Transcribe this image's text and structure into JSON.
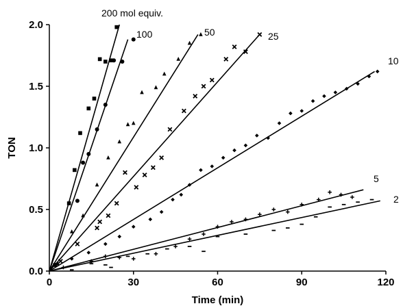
{
  "chart_data": {
    "type": "scatter",
    "title": "",
    "xlabel": "Time (min)",
    "ylabel": "TON",
    "xlim": [
      0,
      120
    ],
    "ylim": [
      0,
      2.0
    ],
    "xticks": [
      0,
      30,
      60,
      90,
      120
    ],
    "yticks": [
      0.0,
      0.5,
      1.0,
      1.5,
      2.0
    ],
    "xtick_labels": [
      "0",
      "30",
      "60",
      "90",
      "120"
    ],
    "ytick_labels": [
      "0.0",
      "0.5",
      "1.0",
      "1.5",
      "2.0"
    ],
    "grid": false,
    "legend": "none",
    "series": [
      {
        "name": "200 mol equiv.",
        "marker": "square",
        "fit": [
          [
            0,
            0
          ],
          [
            25,
            2.0
          ]
        ],
        "points": [
          [
            2,
            0.05
          ],
          [
            7,
            0.55
          ],
          [
            9,
            0.82
          ],
          [
            11,
            1.12
          ],
          [
            14,
            1.32
          ],
          [
            16,
            1.4
          ],
          [
            18,
            1.72
          ],
          [
            20,
            1.7
          ],
          [
            22,
            1.71
          ],
          [
            24,
            1.98
          ]
        ]
      },
      {
        "name": "100",
        "marker": "circle",
        "fit": [
          [
            0,
            0
          ],
          [
            28,
            1.88
          ]
        ],
        "points": [
          [
            2,
            0.05
          ],
          [
            10,
            0.57
          ],
          [
            12,
            0.88
          ],
          [
            14,
            0.95
          ],
          [
            17,
            1.15
          ],
          [
            20,
            1.35
          ],
          [
            23,
            1.71
          ],
          [
            26,
            1.7
          ],
          [
            30,
            1.88
          ]
        ]
      },
      {
        "name": "50",
        "marker": "triangle",
        "fit": [
          [
            0,
            0
          ],
          [
            53,
            1.92
          ]
        ],
        "points": [
          [
            3,
            0.06
          ],
          [
            8,
            0.32
          ],
          [
            12,
            0.45
          ],
          [
            17,
            0.7
          ],
          [
            21,
            0.92
          ],
          [
            25,
            1.05
          ],
          [
            28,
            1.19
          ],
          [
            30,
            1.2
          ],
          [
            33,
            1.45
          ],
          [
            38,
            1.49
          ],
          [
            41,
            1.6
          ],
          [
            46,
            1.72
          ],
          [
            50,
            1.85
          ],
          [
            54,
            1.92
          ]
        ]
      },
      {
        "name": "25",
        "marker": "cross",
        "fit": [
          [
            0,
            0
          ],
          [
            75,
            1.92
          ]
        ],
        "points": [
          [
            4,
            0.08
          ],
          [
            10,
            0.22
          ],
          [
            17,
            0.35
          ],
          [
            18,
            0.4
          ],
          [
            21,
            0.45
          ],
          [
            24,
            0.55
          ],
          [
            27,
            0.8
          ],
          [
            31,
            0.68
          ],
          [
            34,
            0.78
          ],
          [
            37,
            0.84
          ],
          [
            40,
            0.92
          ],
          [
            43,
            1.15
          ],
          [
            48,
            1.3
          ],
          [
            52,
            1.42
          ],
          [
            55,
            1.5
          ],
          [
            58,
            1.55
          ],
          [
            63,
            1.72
          ],
          [
            66,
            1.82
          ],
          [
            70,
            1.78
          ],
          [
            75,
            1.92
          ]
        ]
      },
      {
        "name": "10",
        "marker": "diamond",
        "fit": [
          [
            0,
            0
          ],
          [
            116,
            1.62
          ]
        ],
        "points": [
          [
            8,
            0.1
          ],
          [
            14,
            0.15
          ],
          [
            20,
            0.22
          ],
          [
            25,
            0.28
          ],
          [
            30,
            0.36
          ],
          [
            36,
            0.42
          ],
          [
            40,
            0.48
          ],
          [
            44,
            0.58
          ],
          [
            47,
            0.62
          ],
          [
            50,
            0.7
          ],
          [
            54,
            0.82
          ],
          [
            58,
            0.85
          ],
          [
            62,
            0.92
          ],
          [
            66,
            0.98
          ],
          [
            70,
            1.02
          ],
          [
            74,
            1.1
          ],
          [
            78,
            1.08
          ],
          [
            82,
            1.2
          ],
          [
            86,
            1.28
          ],
          [
            90,
            1.3
          ],
          [
            94,
            1.38
          ],
          [
            98,
            1.42
          ],
          [
            102,
            1.45
          ],
          [
            106,
            1.48
          ],
          [
            110,
            1.52
          ],
          [
            114,
            1.58
          ],
          [
            117,
            1.62
          ]
        ]
      },
      {
        "name": "5",
        "marker": "plus",
        "fit": [
          [
            0,
            0
          ],
          [
            112,
            0.66
          ]
        ],
        "points": [
          [
            5,
            0.03
          ],
          [
            15,
            0.08
          ],
          [
            20,
            0.12
          ],
          [
            25,
            0.11
          ],
          [
            30,
            0.1
          ],
          [
            38,
            0.14
          ],
          [
            45,
            0.2
          ],
          [
            50,
            0.26
          ],
          [
            55,
            0.3
          ],
          [
            60,
            0.36
          ],
          [
            65,
            0.4
          ],
          [
            70,
            0.42
          ],
          [
            75,
            0.46
          ],
          [
            80,
            0.5
          ],
          [
            85,
            0.48
          ],
          [
            90,
            0.54
          ],
          [
            96,
            0.58
          ],
          [
            100,
            0.64
          ],
          [
            104,
            0.62
          ],
          [
            108,
            0.6
          ]
        ]
      },
      {
        "name": "2",
        "marker": "dash",
        "fit": [
          [
            0,
            0
          ],
          [
            118,
            0.57
          ]
        ],
        "points": [
          [
            8,
            0.01
          ],
          [
            15,
            0.06
          ],
          [
            20,
            0.05
          ],
          [
            22,
            0.03
          ],
          [
            28,
            0.12
          ],
          [
            35,
            0.14
          ],
          [
            42,
            0.18
          ],
          [
            50,
            0.2
          ],
          [
            55,
            0.16
          ],
          [
            60,
            0.28
          ],
          [
            70,
            0.3
          ],
          [
            80,
            0.33
          ],
          [
            85,
            0.35
          ],
          [
            90,
            0.38
          ],
          [
            95,
            0.44
          ],
          [
            100,
            0.52
          ],
          [
            105,
            0.54
          ],
          [
            110,
            0.56
          ],
          [
            115,
            0.58
          ]
        ]
      }
    ]
  }
}
